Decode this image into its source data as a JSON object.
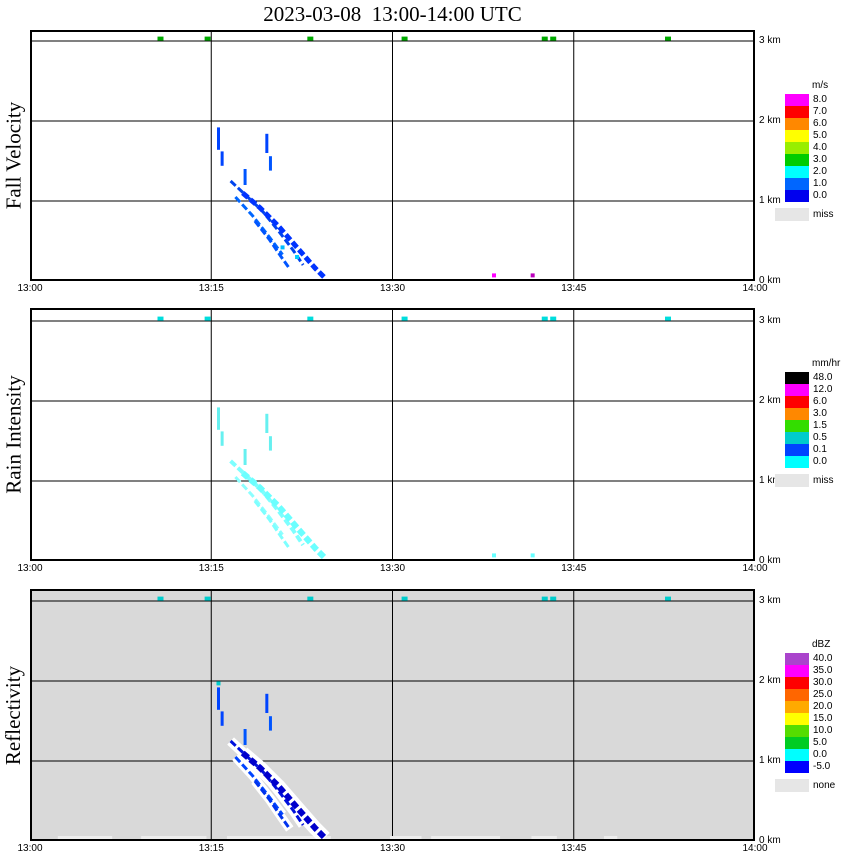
{
  "title": "2023-03-08  13:00-14:00 UTC",
  "axes": {
    "x_ticks": [
      "13:00",
      "13:15",
      "13:30",
      "13:45",
      "14:00"
    ],
    "x_tick_minutes": [
      0,
      15,
      30,
      45,
      60
    ],
    "x_range_minutes": [
      0,
      60
    ],
    "y_ticks": [
      "0 km",
      "1 km",
      "2 km",
      "3 km"
    ],
    "y_tick_km": [
      0,
      1,
      2,
      3
    ],
    "y_range_km": [
      0,
      3.1
    ],
    "grid": true
  },
  "chart_data": [
    {
      "type": "heatmap",
      "panel": "fall_velocity",
      "ylabel": "Fall Velocity",
      "plot_background": "#ffffff",
      "colorbar": {
        "unit": "m/s",
        "entries": [
          {
            "label": "8.0",
            "color": "#ff00ff"
          },
          {
            "label": "7.0",
            "color": "#ff0000"
          },
          {
            "label": "6.0",
            "color": "#ff8800"
          },
          {
            "label": "5.0",
            "color": "#ffff00"
          },
          {
            "label": "4.0",
            "color": "#99ee00"
          },
          {
            "label": "3.0",
            "color": "#00cc00"
          },
          {
            "label": "2.0",
            "color": "#00ffff"
          },
          {
            "label": "1.0",
            "color": "#0066ff"
          },
          {
            "label": "0.0",
            "color": "#0000ee"
          }
        ],
        "missing": {
          "label": "miss",
          "color": "#e6e6e6"
        }
      },
      "top_row": {
        "height_km": 3.03,
        "color": "#00aa00",
        "times_min": [
          10.8,
          14.7,
          23.2,
          31.0,
          42.6,
          43.3,
          52.8
        ]
      },
      "streaks": [
        {
          "color": "#0044ee",
          "w": 3,
          "pts": [
            [
              16.6,
              1.25
            ],
            [
              17.8,
              1.08
            ],
            [
              19.2,
              0.88
            ],
            [
              20.6,
              0.62
            ],
            [
              21.8,
              0.38
            ],
            [
              22.6,
              0.2
            ]
          ]
        },
        {
          "color": "#0033ff",
          "w": 5,
          "pts": [
            [
              17.6,
              1.1
            ],
            [
              19.0,
              0.92
            ],
            [
              20.6,
              0.68
            ],
            [
              22.2,
              0.4
            ],
            [
              23.6,
              0.16
            ],
            [
              24.4,
              0.04
            ]
          ]
        },
        {
          "color": "#0066ff",
          "w": 3,
          "pts": [
            [
              17.0,
              1.05
            ],
            [
              18.4,
              0.82
            ],
            [
              19.8,
              0.55
            ],
            [
              20.9,
              0.33
            ]
          ]
        },
        {
          "color": "#0055ff",
          "w": 3,
          "pts": [
            [
              18.6,
              0.75
            ],
            [
              19.8,
              0.52
            ],
            [
              20.8,
              0.3
            ],
            [
              21.5,
              0.15
            ]
          ]
        }
      ],
      "dashes": [
        {
          "t": 15.6,
          "h1": 1.64,
          "h2": 1.92,
          "color": "#0044ff",
          "w": 3
        },
        {
          "t": 15.9,
          "h1": 1.44,
          "h2": 1.62,
          "color": "#0044ff",
          "w": 3
        },
        {
          "t": 17.8,
          "h1": 1.2,
          "h2": 1.4,
          "color": "#0055ff",
          "w": 3
        },
        {
          "t": 19.6,
          "h1": 1.6,
          "h2": 1.84,
          "color": "#0044ff",
          "w": 3
        },
        {
          "t": 19.9,
          "h1": 1.38,
          "h2": 1.56,
          "color": "#0055ff",
          "w": 3
        }
      ],
      "dots": [
        {
          "t": 20.9,
          "h": 0.42,
          "color": "#00bbff"
        },
        {
          "t": 22.1,
          "h": 0.3,
          "color": "#00ccff"
        },
        {
          "t": 38.4,
          "h": 0.07,
          "color": "#ff00ff"
        },
        {
          "t": 41.6,
          "h": 0.07,
          "color": "#bb00bb"
        }
      ]
    },
    {
      "type": "heatmap",
      "panel": "rain_intensity",
      "ylabel": "Rain Intensity",
      "plot_background": "#ffffff",
      "colorbar": {
        "unit": "mm/hr",
        "entries": [
          {
            "label": "48.0",
            "color": "#000000"
          },
          {
            "label": "12.0",
            "color": "#ff00ff"
          },
          {
            "label": "6.0",
            "color": "#ff0000"
          },
          {
            "label": "3.0",
            "color": "#ff8800"
          },
          {
            "label": "1.5",
            "color": "#33dd00"
          },
          {
            "label": "0.5",
            "color": "#00cccc"
          },
          {
            "label": "0.1",
            "color": "#0044ff"
          },
          {
            "label": "0.0",
            "color": "#00ffff"
          }
        ],
        "missing": {
          "label": "miss",
          "color": "#e6e6e6"
        }
      },
      "top_row": {
        "height_km": 3.03,
        "color": "#00dddd",
        "times_min": [
          10.8,
          14.7,
          23.2,
          31.0,
          42.6,
          43.3,
          52.8
        ]
      },
      "streaks": [
        {
          "color": "#7dffff",
          "w": 4,
          "pts": [
            [
              16.6,
              1.25
            ],
            [
              17.8,
              1.08
            ],
            [
              19.2,
              0.88
            ],
            [
              20.6,
              0.62
            ],
            [
              21.8,
              0.38
            ],
            [
              22.6,
              0.2
            ]
          ]
        },
        {
          "color": "#6bffff",
          "w": 6,
          "pts": [
            [
              17.6,
              1.1
            ],
            [
              19.0,
              0.92
            ],
            [
              20.6,
              0.68
            ],
            [
              22.2,
              0.4
            ],
            [
              23.6,
              0.16
            ],
            [
              24.4,
              0.04
            ]
          ]
        },
        {
          "color": "#8cffff",
          "w": 3,
          "pts": [
            [
              17.0,
              1.05
            ],
            [
              18.4,
              0.82
            ],
            [
              19.8,
              0.55
            ],
            [
              20.9,
              0.33
            ]
          ]
        },
        {
          "color": "#7dffff",
          "w": 3,
          "pts": [
            [
              18.6,
              0.75
            ],
            [
              19.8,
              0.52
            ],
            [
              20.8,
              0.3
            ],
            [
              21.5,
              0.15
            ]
          ]
        }
      ],
      "dashes": [
        {
          "t": 15.6,
          "h1": 1.64,
          "h2": 1.92,
          "color": "#66f0f0",
          "w": 3
        },
        {
          "t": 15.9,
          "h1": 1.44,
          "h2": 1.62,
          "color": "#66f0f0",
          "w": 3
        },
        {
          "t": 17.8,
          "h1": 1.2,
          "h2": 1.4,
          "color": "#66f0f0",
          "w": 3
        },
        {
          "t": 19.6,
          "h1": 1.6,
          "h2": 1.84,
          "color": "#66f0f0",
          "w": 3
        },
        {
          "t": 19.9,
          "h1": 1.38,
          "h2": 1.56,
          "color": "#66f0f0",
          "w": 3
        }
      ],
      "dots": [
        {
          "t": 38.4,
          "h": 0.07,
          "color": "#66ffff"
        },
        {
          "t": 41.6,
          "h": 0.07,
          "color": "#66ffff"
        }
      ]
    },
    {
      "type": "heatmap",
      "panel": "reflectivity",
      "ylabel": "Reflectivity",
      "plot_background": "#d9d9d9",
      "colorbar": {
        "unit": "dBZ",
        "entries": [
          {
            "label": "40.0",
            "color": "#aa44cc"
          },
          {
            "label": "35.0",
            "color": "#ff00ff"
          },
          {
            "label": "30.0",
            "color": "#ff0000"
          },
          {
            "label": "25.0",
            "color": "#ff6600"
          },
          {
            "label": "20.0",
            "color": "#ffaa00"
          },
          {
            "label": "15.0",
            "color": "#ffff00"
          },
          {
            "label": "10.0",
            "color": "#55dd00"
          },
          {
            "label": "5.0",
            "color": "#00cc22"
          },
          {
            "label": "0.0",
            "color": "#00ffff"
          },
          {
            "label": "-5.0",
            "color": "#0000ff"
          }
        ],
        "missing": {
          "label": "none",
          "color": "#e6e6e6"
        }
      },
      "top_row": {
        "height_km": 3.03,
        "color": "#00cccc",
        "times_min": [
          10.8,
          14.7,
          23.2,
          31.0,
          42.6,
          43.3,
          52.8
        ]
      },
      "bottom_row_color": "#ededed",
      "bottom_row": [
        [
          2.3,
          6.8
        ],
        [
          9.2,
          14.6
        ],
        [
          16.3,
          24.9
        ],
        [
          29.8,
          32.4
        ],
        [
          33.2,
          38.9
        ],
        [
          41.5,
          43.6
        ],
        [
          47.5,
          48.6
        ]
      ],
      "streaks": [
        {
          "color": "#ffffff",
          "w": 10,
          "solid": true,
          "pts": [
            [
              16.6,
              1.25
            ],
            [
              17.8,
              1.08
            ],
            [
              19.2,
              0.88
            ],
            [
              20.6,
              0.62
            ],
            [
              21.8,
              0.38
            ],
            [
              22.6,
              0.2
            ]
          ]
        },
        {
          "color": "#ffffff",
          "w": 14,
          "solid": true,
          "pts": [
            [
              17.6,
              1.1
            ],
            [
              19.0,
              0.92
            ],
            [
              20.6,
              0.68
            ],
            [
              22.2,
              0.4
            ],
            [
              23.6,
              0.16
            ],
            [
              24.4,
              0.04
            ]
          ]
        },
        {
          "color": "#ffffff",
          "w": 9,
          "solid": true,
          "pts": [
            [
              17.0,
              1.05
            ],
            [
              18.4,
              0.82
            ],
            [
              19.8,
              0.55
            ],
            [
              20.9,
              0.33
            ]
          ]
        },
        {
          "color": "#ffffff",
          "w": 9,
          "solid": true,
          "pts": [
            [
              18.6,
              0.75
            ],
            [
              19.8,
              0.52
            ],
            [
              20.8,
              0.3
            ],
            [
              21.5,
              0.15
            ]
          ]
        },
        {
          "color": "#0011dd",
          "w": 3,
          "pts": [
            [
              16.6,
              1.25
            ],
            [
              17.8,
              1.08
            ],
            [
              19.2,
              0.88
            ],
            [
              20.6,
              0.62
            ],
            [
              21.8,
              0.38
            ],
            [
              22.6,
              0.2
            ]
          ]
        },
        {
          "color": "#0000cc",
          "w": 6,
          "pts": [
            [
              17.6,
              1.1
            ],
            [
              19.0,
              0.92
            ],
            [
              20.6,
              0.68
            ],
            [
              22.2,
              0.4
            ],
            [
              23.6,
              0.16
            ],
            [
              24.4,
              0.04
            ]
          ]
        },
        {
          "color": "#0044ff",
          "w": 3,
          "pts": [
            [
              17.0,
              1.05
            ],
            [
              18.4,
              0.82
            ],
            [
              19.8,
              0.55
            ],
            [
              20.9,
              0.33
            ]
          ]
        },
        {
          "color": "#0033ee",
          "w": 3,
          "pts": [
            [
              18.6,
              0.75
            ],
            [
              19.8,
              0.52
            ],
            [
              20.8,
              0.3
            ],
            [
              21.5,
              0.15
            ]
          ]
        }
      ],
      "dashes": [
        {
          "t": 15.6,
          "h1": 1.64,
          "h2": 1.92,
          "color": "#0044ff",
          "w": 3
        },
        {
          "t": 15.9,
          "h1": 1.44,
          "h2": 1.62,
          "color": "#0044ff",
          "w": 3
        },
        {
          "t": 17.8,
          "h1": 1.2,
          "h2": 1.4,
          "color": "#0055ff",
          "w": 3
        },
        {
          "t": 19.6,
          "h1": 1.6,
          "h2": 1.84,
          "color": "#0044ff",
          "w": 3
        },
        {
          "t": 19.9,
          "h1": 1.38,
          "h2": 1.56,
          "color": "#0055ff",
          "w": 3
        }
      ],
      "dots": [
        {
          "t": 15.6,
          "h": 1.97,
          "color": "#00cccc"
        }
      ]
    }
  ]
}
